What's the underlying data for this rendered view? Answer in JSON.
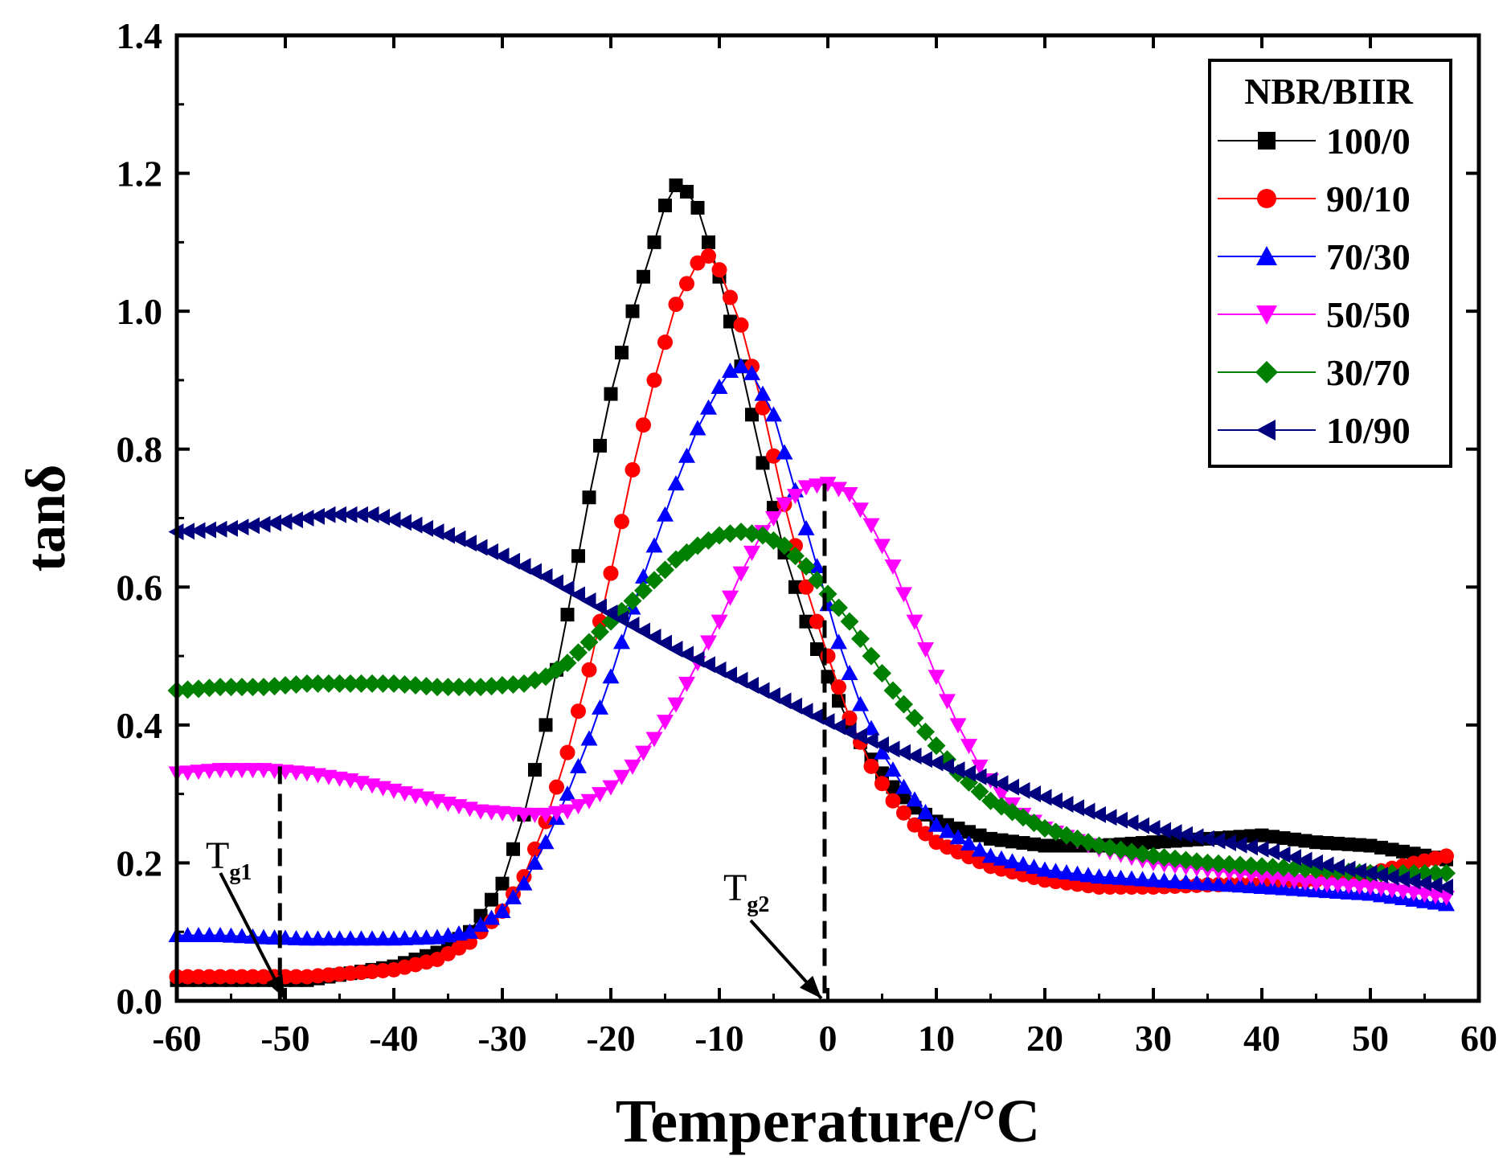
{
  "chart_data": {
    "type": "scatter",
    "xlabel": "Temperature/°C",
    "ylabel": "tanδ",
    "xlim": [
      -60,
      60
    ],
    "ylim": [
      0,
      1.4
    ],
    "xticks": [
      "-60",
      "-50",
      "-40",
      "-30",
      "-20",
      "-10",
      "0",
      "10",
      "20",
      "30",
      "40",
      "50",
      "60"
    ],
    "yticks": [
      "0.0",
      "0.2",
      "0.4",
      "0.6",
      "0.8",
      "1.0",
      "1.2",
      "1.4"
    ],
    "grid": false,
    "legend": {
      "title": "NBR/BIIR",
      "position": "top-right"
    },
    "series": [
      {
        "name": "100/0",
        "color": "#000000",
        "marker": "square",
        "points": [
          [
            -60,
            0.03
          ],
          [
            -56,
            0.03
          ],
          [
            -52,
            0.03
          ],
          [
            -48,
            0.03
          ],
          [
            -44,
            0.04
          ],
          [
            -40,
            0.05
          ],
          [
            -36,
            0.07
          ],
          [
            -33,
            0.1
          ],
          [
            -30,
            0.17
          ],
          [
            -28,
            0.27
          ],
          [
            -26,
            0.4
          ],
          [
            -24,
            0.56
          ],
          [
            -22,
            0.73
          ],
          [
            -20,
            0.88
          ],
          [
            -18,
            1.0
          ],
          [
            -16,
            1.1
          ],
          [
            -14.5,
            1.18
          ],
          [
            -13.5,
            1.185
          ],
          [
            -12,
            1.15
          ],
          [
            -10,
            1.05
          ],
          [
            -8,
            0.92
          ],
          [
            -6,
            0.78
          ],
          [
            -4,
            0.65
          ],
          [
            -2,
            0.55
          ],
          [
            0,
            0.47
          ],
          [
            2,
            0.4
          ],
          [
            4,
            0.35
          ],
          [
            6,
            0.31
          ],
          [
            8,
            0.28
          ],
          [
            10,
            0.26
          ],
          [
            15,
            0.235
          ],
          [
            20,
            0.225
          ],
          [
            25,
            0.225
          ],
          [
            30,
            0.23
          ],
          [
            35,
            0.235
          ],
          [
            40,
            0.24
          ],
          [
            45,
            0.23
          ],
          [
            50,
            0.225
          ],
          [
            57,
            0.205
          ]
        ]
      },
      {
        "name": "90/10",
        "color": "#ff0000",
        "marker": "circle",
        "points": [
          [
            -60,
            0.035
          ],
          [
            -56,
            0.035
          ],
          [
            -52,
            0.035
          ],
          [
            -48,
            0.035
          ],
          [
            -44,
            0.04
          ],
          [
            -40,
            0.045
          ],
          [
            -36,
            0.06
          ],
          [
            -33,
            0.085
          ],
          [
            -30,
            0.13
          ],
          [
            -28,
            0.18
          ],
          [
            -26,
            0.26
          ],
          [
            -24,
            0.36
          ],
          [
            -22,
            0.48
          ],
          [
            -20,
            0.62
          ],
          [
            -18,
            0.77
          ],
          [
            -16,
            0.9
          ],
          [
            -14,
            1.01
          ],
          [
            -12,
            1.07
          ],
          [
            -11,
            1.08
          ],
          [
            -10,
            1.06
          ],
          [
            -8,
            0.98
          ],
          [
            -6,
            0.86
          ],
          [
            -4,
            0.72
          ],
          [
            -2,
            0.6
          ],
          [
            0,
            0.5
          ],
          [
            2,
            0.41
          ],
          [
            4,
            0.34
          ],
          [
            6,
            0.29
          ],
          [
            8,
            0.255
          ],
          [
            10,
            0.23
          ],
          [
            15,
            0.195
          ],
          [
            20,
            0.175
          ],
          [
            25,
            0.165
          ],
          [
            30,
            0.165
          ],
          [
            35,
            0.168
          ],
          [
            40,
            0.17
          ],
          [
            45,
            0.175
          ],
          [
            50,
            0.185
          ],
          [
            57,
            0.21
          ]
        ]
      },
      {
        "name": "70/30",
        "color": "#0000ff",
        "marker": "triangle-up",
        "points": [
          [
            -60,
            0.095
          ],
          [
            -56,
            0.095
          ],
          [
            -52,
            0.092
          ],
          [
            -48,
            0.09
          ],
          [
            -44,
            0.09
          ],
          [
            -40,
            0.09
          ],
          [
            -36,
            0.092
          ],
          [
            -33,
            0.1
          ],
          [
            -30,
            0.13
          ],
          [
            -28,
            0.17
          ],
          [
            -26,
            0.23
          ],
          [
            -24,
            0.3
          ],
          [
            -22,
            0.38
          ],
          [
            -20,
            0.47
          ],
          [
            -18,
            0.57
          ],
          [
            -16,
            0.66
          ],
          [
            -14,
            0.75
          ],
          [
            -12,
            0.83
          ],
          [
            -10,
            0.89
          ],
          [
            -8.5,
            0.925
          ],
          [
            -7,
            0.91
          ],
          [
            -5,
            0.85
          ],
          [
            -3,
            0.74
          ],
          [
            -1,
            0.63
          ],
          [
            1,
            0.52
          ],
          [
            3,
            0.43
          ],
          [
            5,
            0.36
          ],
          [
            7,
            0.31
          ],
          [
            10,
            0.255
          ],
          [
            15,
            0.21
          ],
          [
            20,
            0.19
          ],
          [
            25,
            0.18
          ],
          [
            30,
            0.175
          ],
          [
            35,
            0.17
          ],
          [
            40,
            0.165
          ],
          [
            45,
            0.16
          ],
          [
            50,
            0.155
          ],
          [
            57,
            0.14
          ]
        ]
      },
      {
        "name": "50/50",
        "color": "#ff00ff",
        "marker": "triangle-down",
        "points": [
          [
            -60,
            0.33
          ],
          [
            -56,
            0.335
          ],
          [
            -52,
            0.335
          ],
          [
            -48,
            0.33
          ],
          [
            -44,
            0.32
          ],
          [
            -40,
            0.305
          ],
          [
            -36,
            0.29
          ],
          [
            -32,
            0.275
          ],
          [
            -28,
            0.27
          ],
          [
            -26,
            0.27
          ],
          [
            -24,
            0.275
          ],
          [
            -22,
            0.29
          ],
          [
            -20,
            0.31
          ],
          [
            -18,
            0.34
          ],
          [
            -16,
            0.38
          ],
          [
            -14,
            0.43
          ],
          [
            -12,
            0.49
          ],
          [
            -10,
            0.55
          ],
          [
            -8,
            0.62
          ],
          [
            -6,
            0.68
          ],
          [
            -4,
            0.72
          ],
          [
            -2,
            0.745
          ],
          [
            0,
            0.75
          ],
          [
            2,
            0.735
          ],
          [
            4,
            0.69
          ],
          [
            6,
            0.63
          ],
          [
            8,
            0.55
          ],
          [
            10,
            0.47
          ],
          [
            12,
            0.4
          ],
          [
            14,
            0.34
          ],
          [
            16,
            0.3
          ],
          [
            18,
            0.27
          ],
          [
            20,
            0.25
          ],
          [
            25,
            0.22
          ],
          [
            30,
            0.2
          ],
          [
            35,
            0.19
          ],
          [
            40,
            0.18
          ],
          [
            45,
            0.17
          ],
          [
            50,
            0.165
          ],
          [
            57,
            0.15
          ]
        ]
      },
      {
        "name": "30/70",
        "color": "#008000",
        "marker": "diamond",
        "points": [
          [
            -60,
            0.45
          ],
          [
            -56,
            0.455
          ],
          [
            -52,
            0.455
          ],
          [
            -48,
            0.46
          ],
          [
            -44,
            0.46
          ],
          [
            -40,
            0.46
          ],
          [
            -36,
            0.455
          ],
          [
            -32,
            0.455
          ],
          [
            -28,
            0.46
          ],
          [
            -26,
            0.47
          ],
          [
            -24,
            0.49
          ],
          [
            -22,
            0.52
          ],
          [
            -20,
            0.55
          ],
          [
            -18,
            0.58
          ],
          [
            -16,
            0.61
          ],
          [
            -14,
            0.64
          ],
          [
            -12,
            0.66
          ],
          [
            -10,
            0.675
          ],
          [
            -8,
            0.68
          ],
          [
            -6,
            0.675
          ],
          [
            -4,
            0.66
          ],
          [
            -2,
            0.63
          ],
          [
            0,
            0.59
          ],
          [
            2,
            0.55
          ],
          [
            4,
            0.5
          ],
          [
            6,
            0.45
          ],
          [
            8,
            0.41
          ],
          [
            10,
            0.37
          ],
          [
            12,
            0.33
          ],
          [
            15,
            0.29
          ],
          [
            20,
            0.25
          ],
          [
            25,
            0.225
          ],
          [
            30,
            0.21
          ],
          [
            35,
            0.2
          ],
          [
            40,
            0.195
          ],
          [
            45,
            0.19
          ],
          [
            50,
            0.185
          ],
          [
            57,
            0.185
          ]
        ]
      },
      {
        "name": "10/90",
        "color": "#00007f",
        "marker": "triangle-left",
        "points": [
          [
            -60,
            0.68
          ],
          [
            -55,
            0.685
          ],
          [
            -50,
            0.695
          ],
          [
            -46,
            0.705
          ],
          [
            -42,
            0.705
          ],
          [
            -38,
            0.69
          ],
          [
            -34,
            0.67
          ],
          [
            -30,
            0.645
          ],
          [
            -26,
            0.615
          ],
          [
            -22,
            0.58
          ],
          [
            -18,
            0.545
          ],
          [
            -14,
            0.51
          ],
          [
            -10,
            0.48
          ],
          [
            -6,
            0.45
          ],
          [
            -2,
            0.42
          ],
          [
            2,
            0.39
          ],
          [
            6,
            0.365
          ],
          [
            10,
            0.345
          ],
          [
            15,
            0.32
          ],
          [
            20,
            0.295
          ],
          [
            25,
            0.27
          ],
          [
            30,
            0.25
          ],
          [
            35,
            0.235
          ],
          [
            40,
            0.22
          ],
          [
            45,
            0.2
          ],
          [
            50,
            0.185
          ],
          [
            57,
            0.165
          ]
        ]
      }
    ],
    "annotations": [
      {
        "label": "T",
        "subscript": "g1",
        "x": -50.5
      },
      {
        "label": "T",
        "subscript": "g2",
        "x": -0.3
      }
    ]
  }
}
